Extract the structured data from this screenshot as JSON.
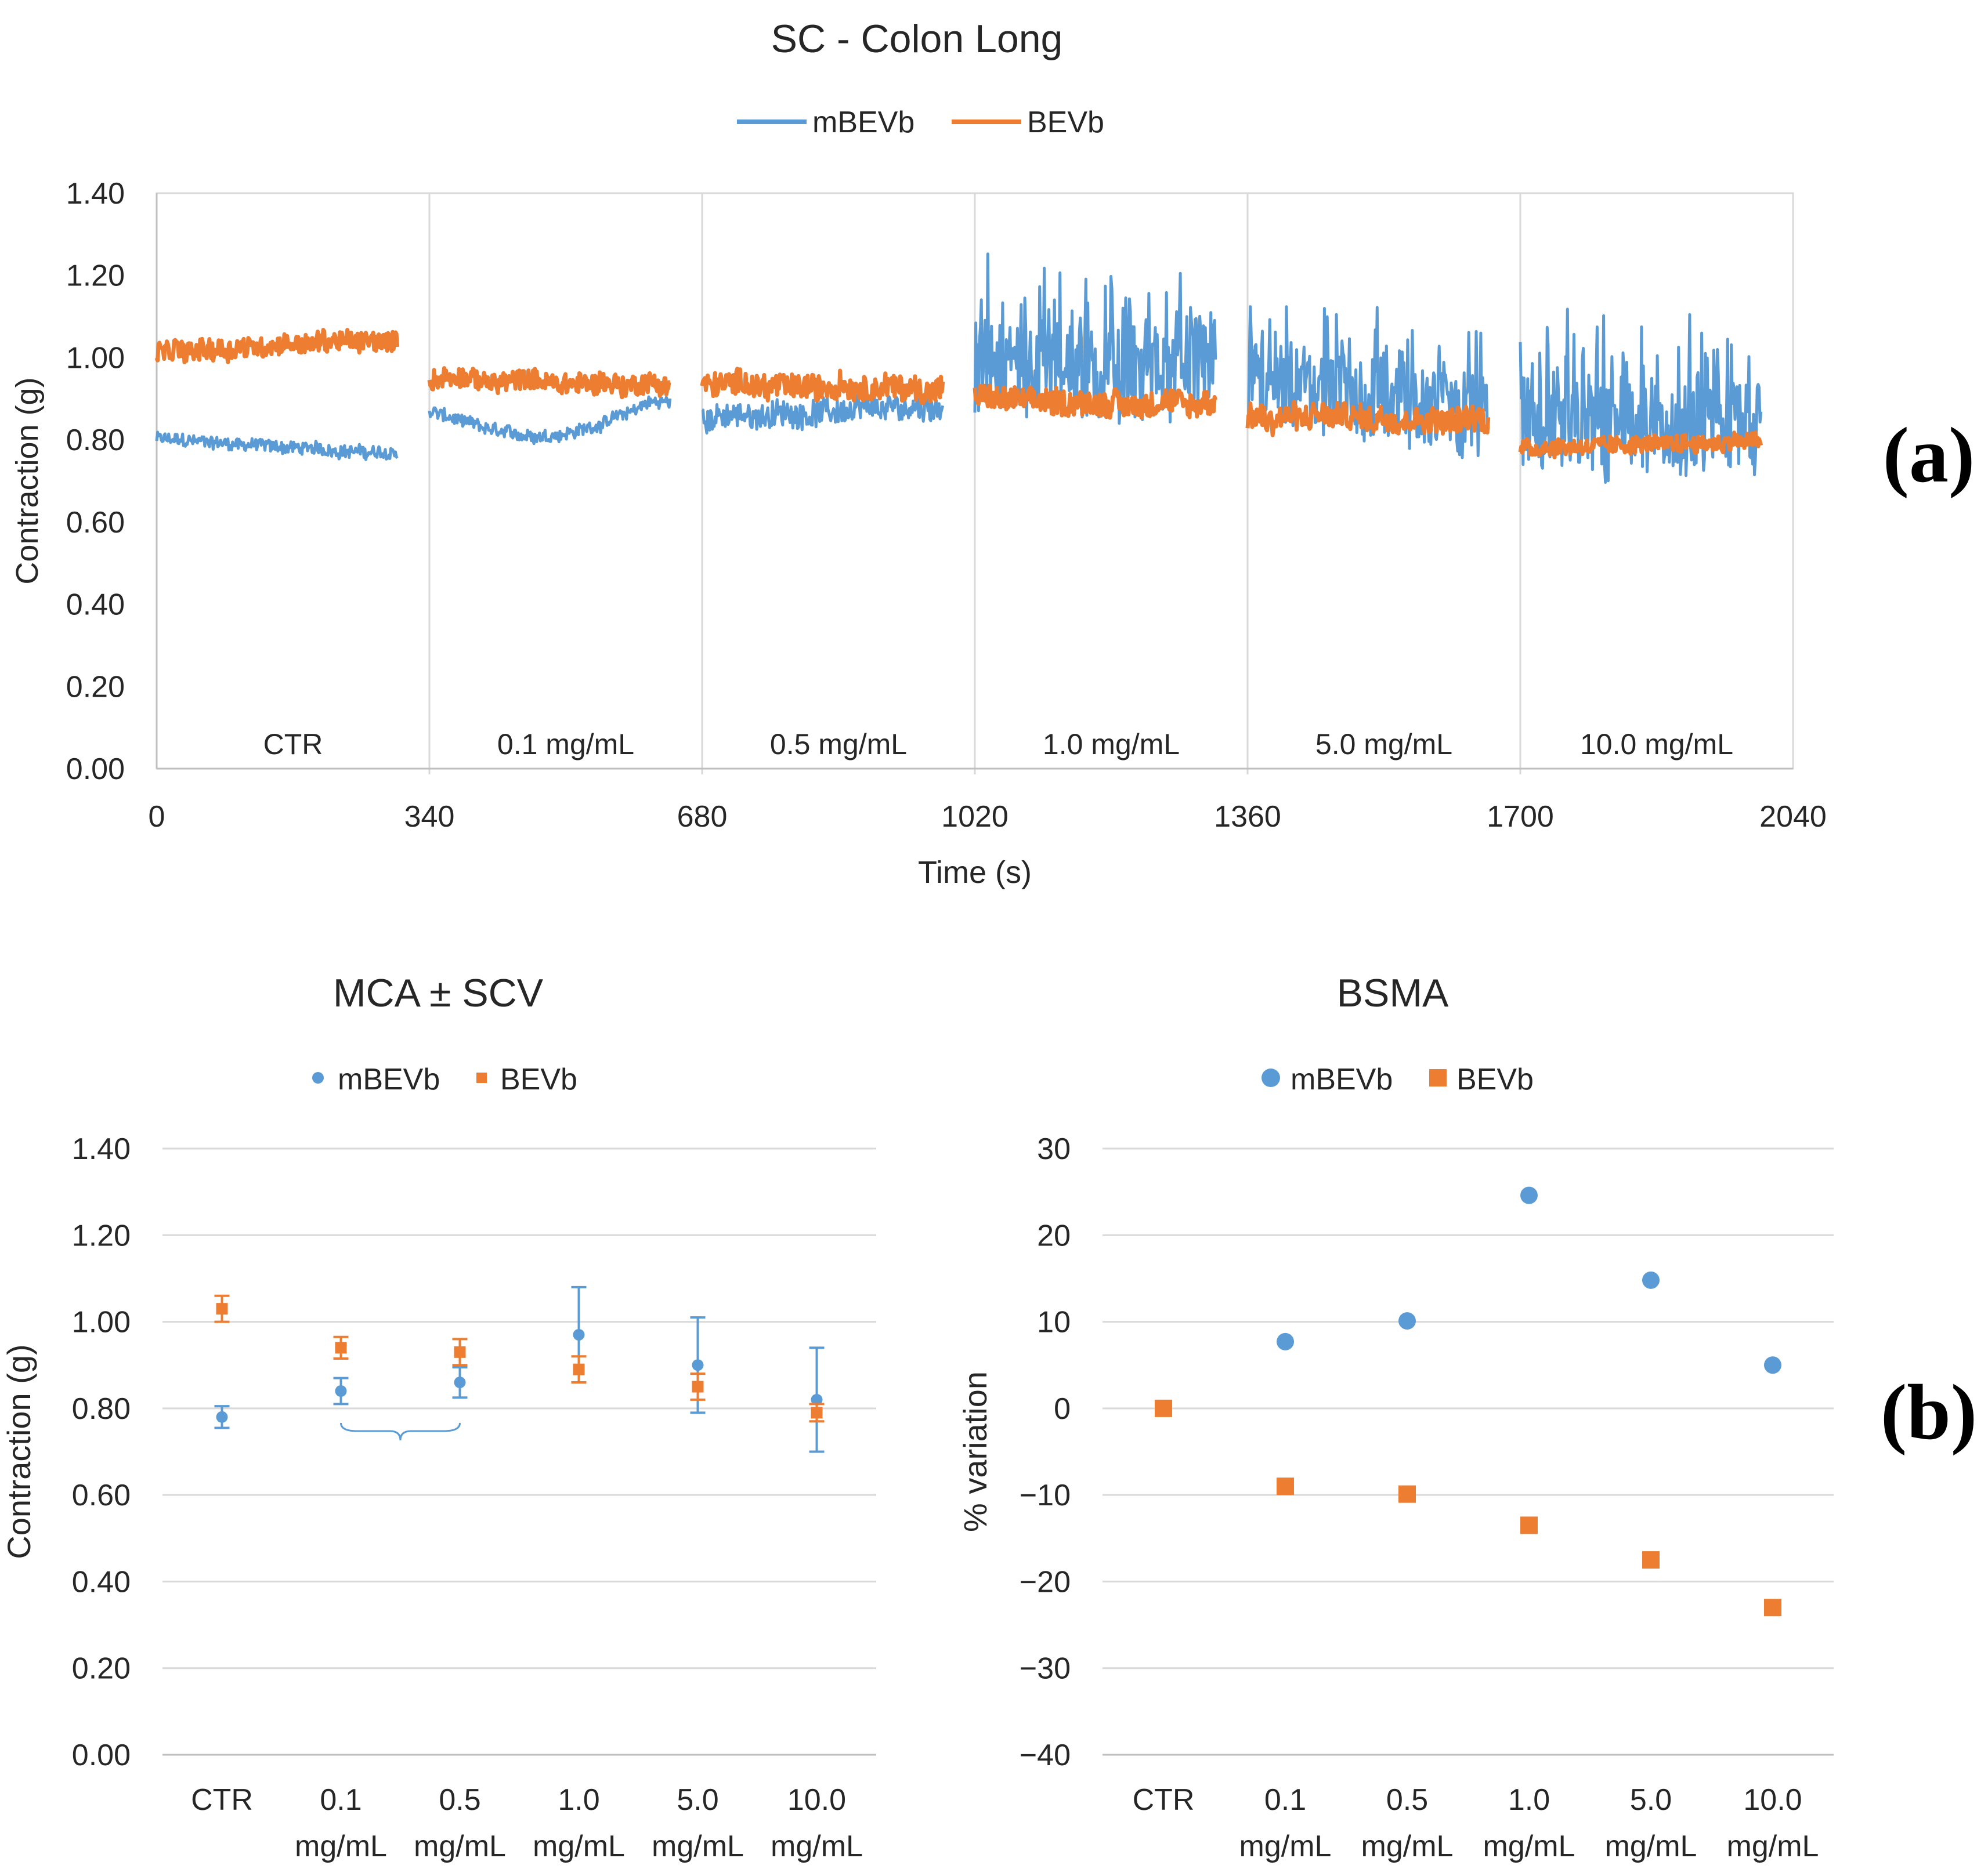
{
  "panel_labels": {
    "a": "(a)",
    "b": "(b)"
  },
  "colors": {
    "mBEVb": "#5B9BD5",
    "BEVb": "#ED7D31",
    "grid": "#d9d9d9",
    "axis": "#bfbfbf",
    "text": "#262626"
  },
  "chart_data": [
    {
      "id": "trace",
      "type": "line",
      "title": "SC - Colon Long",
      "xlabel": "Time (s)",
      "ylabel": "Contraction (g)",
      "xlim": [
        0,
        2040
      ],
      "ylim": [
        0,
        1.4
      ],
      "xticks": [
        "0",
        "340",
        "680",
        "1020",
        "1360",
        "1700",
        "2040"
      ],
      "yticks": [
        "0.00",
        "0.20",
        "0.40",
        "0.60",
        "0.80",
        "1.00",
        "1.20",
        "1.40"
      ],
      "x_gridlines": [
        340,
        680,
        1020,
        1360,
        1700
      ],
      "grid": "vertical",
      "legend": [
        "mBEVb",
        "BEVb"
      ],
      "legend_position": "top-center",
      "segment_labels": [
        "CTR",
        "0.1 mg/mL",
        "0.5 mg/mL",
        "1.0 mg/mL",
        "5.0 mg/mL",
        "10.0 mg/mL"
      ],
      "segments": [
        {
          "label": "CTR",
          "x_start": 0,
          "x_end": 300,
          "mBEVb": {
            "mean": 0.78,
            "start": 0.81,
            "end": 0.76,
            "noise": 0.015
          },
          "BEVb": {
            "mean": 1.03,
            "start": 1.01,
            "end": 1.05,
            "noise": 0.025
          }
        },
        {
          "label": "0.1 mg/mL",
          "x_start": 340,
          "x_end": 640,
          "mBEVb": {
            "mean": 0.84,
            "start": 0.88,
            "end": 0.91,
            "dip": 0.79,
            "noise": 0.015
          },
          "BEVb": {
            "mean": 0.94,
            "start": 0.95,
            "end": 0.93,
            "noise": 0.025
          }
        },
        {
          "label": "0.5 mg/mL",
          "x_start": 680,
          "x_end": 980,
          "mBEVb": {
            "mean": 0.86,
            "start": 0.85,
            "end": 0.89,
            "noise": 0.03
          },
          "BEVb": {
            "mean": 0.93,
            "start": 0.94,
            "end": 0.92,
            "noise": 0.03
          }
        },
        {
          "label": "1.0 mg/mL",
          "x_start": 1020,
          "x_end": 1320,
          "mBEVb": {
            "mean": 0.97,
            "start": 0.97,
            "end": 0.95,
            "noise": 0.11
          },
          "BEVb": {
            "mean": 0.89,
            "start": 0.9,
            "end": 0.88,
            "noise": 0.03
          }
        },
        {
          "label": "5.0 mg/mL",
          "x_start": 1360,
          "x_end": 1660,
          "mBEVb": {
            "mean": 0.9,
            "start": 0.92,
            "end": 0.86,
            "noise": 0.1
          },
          "BEVb": {
            "mean": 0.85,
            "start": 0.86,
            "end": 0.85,
            "noise": 0.03
          }
        },
        {
          "label": "10.0 mg/mL",
          "x_start": 1700,
          "x_end": 2000,
          "mBEVb": {
            "mean": 0.82,
            "start": 0.84,
            "end": 0.82,
            "noise": 0.12
          },
          "BEVb": {
            "mean": 0.79,
            "start": 0.78,
            "end": 0.8,
            "noise": 0.02
          }
        }
      ]
    },
    {
      "id": "mca",
      "type": "scatter",
      "title": "MCA ± SCV",
      "xlabel": "",
      "ylabel": "Contraction (g)",
      "ylim": [
        0,
        1.4
      ],
      "yticks": [
        "0.00",
        "0.20",
        "0.40",
        "0.60",
        "0.80",
        "1.00",
        "1.20",
        "1.40"
      ],
      "grid": "horizontal",
      "legend": [
        "mBEVb",
        "BEVb"
      ],
      "legend_position": "top-center",
      "categories": [
        [
          "CTR",
          ""
        ],
        [
          "0.1",
          "mg/mL"
        ],
        [
          "0.5",
          "mg/mL"
        ],
        [
          "1.0",
          "mg/mL"
        ],
        [
          "5.0",
          "mg/mL"
        ],
        [
          "10.0",
          "mg/mL"
        ]
      ],
      "series": [
        {
          "name": "mBEVb",
          "marker": "circle",
          "values": [
            0.78,
            0.84,
            0.86,
            0.97,
            0.9,
            0.82
          ],
          "errors": [
            0.025,
            0.03,
            0.035,
            0.11,
            0.11,
            0.12
          ]
        },
        {
          "name": "BEVb",
          "marker": "square",
          "values": [
            1.03,
            0.94,
            0.93,
            0.89,
            0.85,
            0.79
          ],
          "errors": [
            0.03,
            0.025,
            0.03,
            0.03,
            0.03,
            0.02
          ]
        }
      ],
      "annotation": "brace under 0.1 mg/mL and 0.5 mg/mL"
    },
    {
      "id": "bsma",
      "type": "scatter",
      "title": "BSMA",
      "xlabel": "",
      "ylabel": "% variation",
      "ylim": [
        -40,
        30
      ],
      "yticks": [
        "−40",
        "−30",
        "−20",
        "−10",
        "0",
        "10",
        "20",
        "30"
      ],
      "grid": "horizontal",
      "legend": [
        "mBEVb",
        "BEVb"
      ],
      "legend_position": "top-center",
      "categories": [
        [
          "CTR",
          ""
        ],
        [
          "0.1",
          "mg/mL"
        ],
        [
          "0.5",
          "mg/mL"
        ],
        [
          "1.0",
          "mg/mL"
        ],
        [
          "5.0",
          "mg/mL"
        ],
        [
          "10.0",
          "mg/mL"
        ]
      ],
      "series": [
        {
          "name": "mBEVb",
          "marker": "circle",
          "values": [
            null,
            7.7,
            10.1,
            24.6,
            14.8,
            5.0
          ]
        },
        {
          "name": "BEVb",
          "marker": "square",
          "values": [
            0,
            -9.0,
            -9.9,
            -13.5,
            -17.5,
            -23.0
          ]
        }
      ]
    }
  ]
}
